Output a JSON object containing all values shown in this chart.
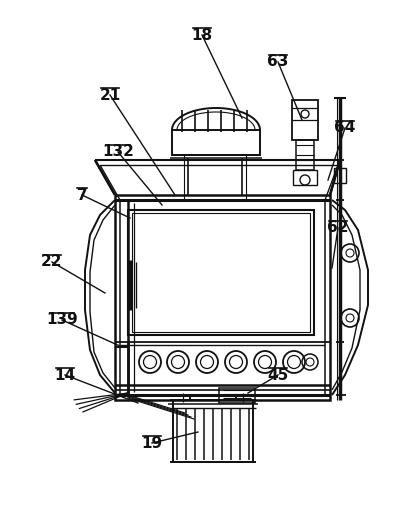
{
  "background_color": "#ffffff",
  "line_color": "#111111",
  "fig_width": 4.0,
  "fig_height": 5.2,
  "dpi": 100,
  "labels": [
    [
      "18",
      202,
      35,
      242,
      118
    ],
    [
      "21",
      110,
      95,
      175,
      195
    ],
    [
      "63",
      278,
      62,
      302,
      120
    ],
    [
      "64",
      345,
      128,
      328,
      180
    ],
    [
      "132",
      118,
      152,
      162,
      205
    ],
    [
      "7",
      82,
      195,
      130,
      218
    ],
    [
      "62",
      338,
      228,
      332,
      268
    ],
    [
      "22",
      52,
      262,
      105,
      293
    ],
    [
      "139",
      62,
      320,
      122,
      347
    ],
    [
      "14",
      65,
      375,
      138,
      403
    ],
    [
      "45",
      278,
      375,
      248,
      393
    ],
    [
      "19",
      152,
      443,
      198,
      432
    ]
  ]
}
